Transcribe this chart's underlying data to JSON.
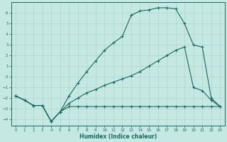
{
  "xlabel": "Humidex (Indice chaleur)",
  "bg_color": "#c5e8e3",
  "line_color": "#1a6860",
  "grid_color": "#aed4ce",
  "xlim": [
    -0.5,
    23.5
  ],
  "ylim": [
    -4.6,
    7.0
  ],
  "yticks": [
    -4,
    -3,
    -2,
    -1,
    0,
    1,
    2,
    3,
    4,
    5,
    6
  ],
  "xticks": [
    0,
    1,
    2,
    3,
    4,
    5,
    6,
    7,
    8,
    9,
    10,
    11,
    12,
    13,
    14,
    15,
    16,
    17,
    18,
    19,
    20,
    21,
    22,
    23
  ],
  "line1_x": [
    0,
    1,
    2,
    3,
    4,
    5,
    6,
    7,
    8,
    9,
    10,
    11,
    12,
    13,
    14,
    15,
    16,
    17,
    18,
    19,
    20,
    21,
    22,
    23
  ],
  "line1_y": [
    -1.8,
    -2.2,
    -2.7,
    -2.7,
    -4.2,
    -3.3,
    -2.8,
    -2.8,
    -2.8,
    -2.8,
    -2.8,
    -2.8,
    -2.8,
    -2.8,
    -2.8,
    -2.8,
    -2.8,
    -2.8,
    -2.8,
    -2.8,
    -2.8,
    -2.8,
    -2.8,
    -2.8
  ],
  "line2_x": [
    0,
    1,
    2,
    3,
    4,
    5,
    6,
    7,
    8,
    9,
    10,
    11,
    12,
    13,
    14,
    15,
    16,
    17,
    18,
    19,
    20,
    21,
    22,
    23
  ],
  "line2_y": [
    -1.8,
    -2.2,
    -2.7,
    -2.7,
    -4.2,
    -3.3,
    -2.5,
    -2.0,
    -1.5,
    -1.2,
    -0.8,
    -0.5,
    -0.2,
    0.1,
    0.5,
    1.0,
    1.5,
    2.0,
    2.5,
    2.8,
    -1.0,
    -1.3,
    -2.2,
    -2.8
  ],
  "line3_x": [
    0,
    1,
    2,
    3,
    4,
    5,
    6,
    7,
    8,
    9,
    10,
    11,
    12,
    13,
    14,
    15,
    16,
    17,
    18,
    19,
    20,
    21,
    22,
    23
  ],
  "line3_y": [
    -1.8,
    -2.2,
    -2.7,
    -2.7,
    -4.2,
    -3.3,
    -1.8,
    -0.6,
    0.5,
    1.5,
    2.5,
    3.2,
    3.8,
    5.8,
    6.2,
    6.3,
    6.5,
    6.5,
    6.4,
    5.0,
    3.0,
    2.8,
    -2.0,
    -2.8
  ]
}
